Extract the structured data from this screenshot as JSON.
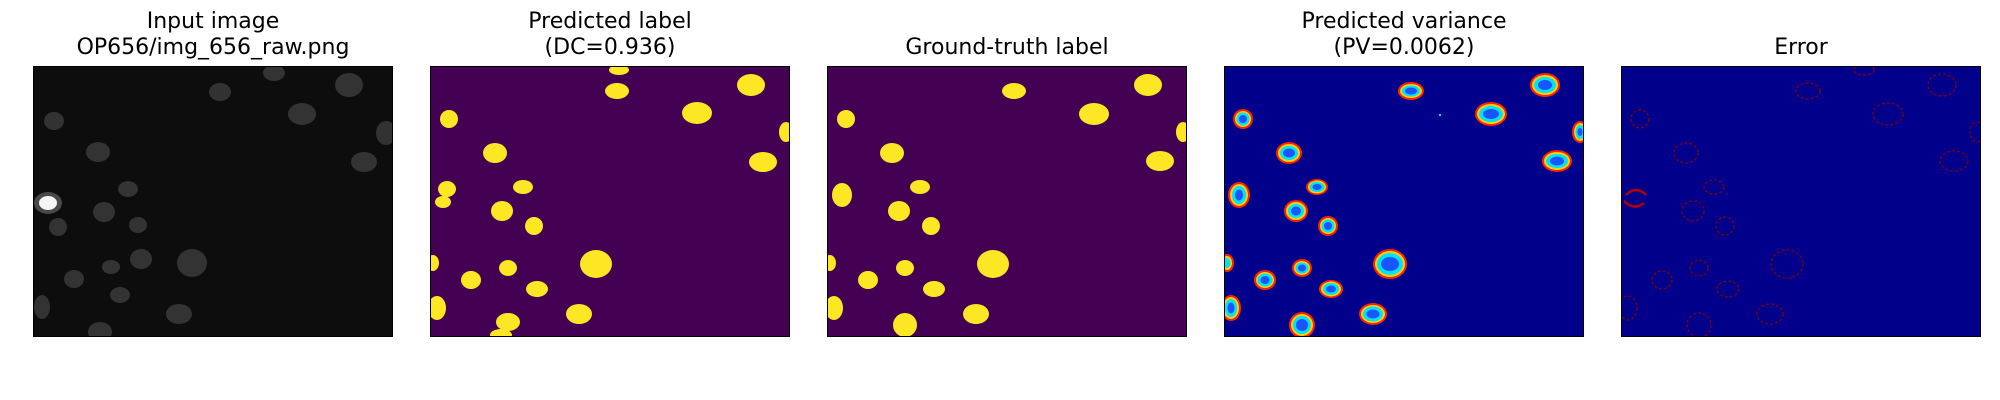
{
  "panels": [
    {
      "id": "input",
      "title_line1": "Input image",
      "title_line2": "OP656/img_656_raw.png"
    },
    {
      "id": "predicted",
      "title_line1": "Predicted label",
      "title_line2": "(DC=0.936)"
    },
    {
      "id": "groundtruth",
      "title_line1": "",
      "title_line2": "Ground-truth label"
    },
    {
      "id": "variance",
      "title_line1": "Predicted variance",
      "title_line2": "(PV=0.0062)"
    },
    {
      "id": "error",
      "title_line1": "",
      "title_line2": "Error"
    }
  ],
  "colors": {
    "input_bg": "#0d0d0d",
    "input_cell": "#3a3a3a",
    "input_bright": "#f0f0f0",
    "label_bg": "#440154",
    "label_fg": "#fde725",
    "jet_bg": "#00008b",
    "jet_ring_outer": "#ff2200",
    "jet_ring_mid": "#ffd000",
    "jet_ring_inner": "#00e0ff",
    "jet_core": "#1a56ff",
    "error_ring": "#8b0000"
  }
}
